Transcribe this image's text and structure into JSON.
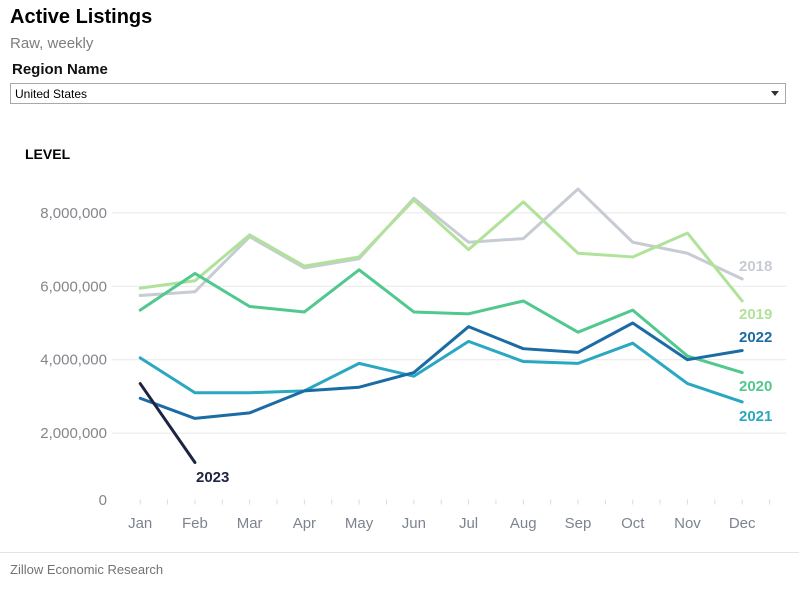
{
  "header": {
    "title": "Active Listings",
    "subtitle": "Raw, weekly"
  },
  "filter": {
    "label": "Region Name",
    "selected": "United States",
    "options": [
      "United States"
    ]
  },
  "chart_data": {
    "type": "line",
    "title": "Active Listings",
    "subtitle": "Raw, weekly",
    "ylabel": "LEVEL",
    "xlabel": "",
    "grid": "horizontal",
    "legend_position": "right-of-line-end",
    "x_categories": [
      "Jan",
      "Feb",
      "Mar",
      "Apr",
      "May",
      "Jun",
      "Jul",
      "Aug",
      "Sep",
      "Oct",
      "Nov",
      "Dec"
    ],
    "ylim": [
      0,
      8800000
    ],
    "y_ticks": [
      0,
      2000000,
      4000000,
      6000000,
      8000000
    ],
    "y_tick_labels": [
      "0",
      "2,000,000",
      "4,000,000",
      "6,000,000",
      "8,000,000"
    ],
    "series": [
      {
        "name": "2018",
        "color": "#c7cbd3",
        "values": [
          5750000,
          5850000,
          7350000,
          6500000,
          6750000,
          8400000,
          7200000,
          7300000,
          8650000,
          7200000,
          6900000,
          6200000
        ]
      },
      {
        "name": "2019",
        "color": "#b0e29a",
        "values": [
          5950000,
          6150000,
          7400000,
          6550000,
          6800000,
          8350000,
          7000000,
          8300000,
          6900000,
          6800000,
          7450000,
          5600000
        ]
      },
      {
        "name": "2020",
        "color": "#50c88e",
        "values": [
          5350000,
          6350000,
          5450000,
          5300000,
          6450000,
          5300000,
          5250000,
          5600000,
          4750000,
          5350000,
          4100000,
          3650000
        ]
      },
      {
        "name": "2021",
        "color": "#2aa7c1",
        "values": [
          4050000,
          3100000,
          3100000,
          3150000,
          3900000,
          3550000,
          4500000,
          3950000,
          3900000,
          4450000,
          3350000,
          2850000
        ]
      },
      {
        "name": "2022",
        "color": "#1b6ba5",
        "values": [
          2950000,
          2400000,
          2550000,
          3150000,
          3250000,
          3650000,
          4900000,
          4300000,
          4200000,
          5000000,
          4000000,
          4250000
        ]
      },
      {
        "name": "2023",
        "color": "#1c2442",
        "values": [
          3350000,
          1200000
        ]
      }
    ]
  },
  "footer": {
    "credit": "Zillow Economic Research"
  }
}
